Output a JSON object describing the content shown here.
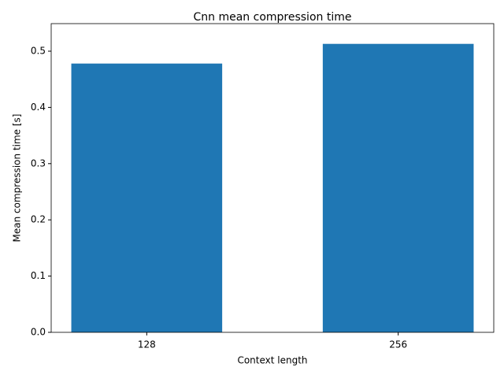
{
  "chart_data": {
    "type": "bar",
    "title": "Cnn mean compression time",
    "x_label": "Context length",
    "y_label": "Mean compression time [s]",
    "categories": [
      "128",
      "256"
    ],
    "values": [
      0.478,
      0.513
    ],
    "color": "#1f77b4",
    "ylim": [
      0,
      0.549
    ],
    "yticks": [
      {
        "value": 0,
        "label": "0.0"
      },
      0.1,
      0.2,
      0.3,
      0.4,
      0.5
    ],
    "grid": false
  }
}
